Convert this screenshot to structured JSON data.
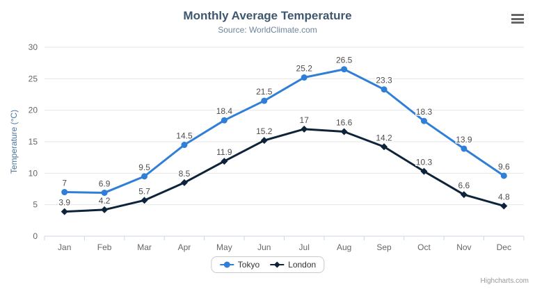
{
  "chart_data": {
    "type": "line",
    "title": "Monthly Average Temperature",
    "subtitle": "Source: WorldClimate.com",
    "categories": [
      "Jan",
      "Feb",
      "Mar",
      "Apr",
      "May",
      "Jun",
      "Jul",
      "Aug",
      "Sep",
      "Oct",
      "Nov",
      "Dec"
    ],
    "series": [
      {
        "name": "Tokyo",
        "color": "#2f7ed8",
        "marker": "circle",
        "values": [
          7,
          6.9,
          9.5,
          14.5,
          18.4,
          21.5,
          25.2,
          26.5,
          23.3,
          18.3,
          13.9,
          9.6
        ]
      },
      {
        "name": "London",
        "color": "#0d233a",
        "marker": "diamond",
        "values": [
          3.9,
          4.2,
          5.7,
          8.5,
          11.9,
          15.2,
          17,
          16.6,
          14.2,
          10.3,
          6.6,
          4.8
        ]
      }
    ],
    "xlabel": "",
    "ylabel": "Temperature (°C)",
    "ylim": [
      0,
      30
    ],
    "ytick_interval": 5,
    "grid": true,
    "legend_position": "bottom-center",
    "data_labels_visible": true
  },
  "colors": {
    "title": "#3e576f",
    "subtitle": "#6d869f",
    "axis_title": "#4d759e",
    "axis_labels": "#666666",
    "grid": "#e6e6e6",
    "axis_line": "#ccd6eb",
    "data_label": "#4d4d4d",
    "legend_text": "#333333",
    "legend_border": "#c9c9c9",
    "credits": "#999999",
    "menu_icon": "#666666"
  },
  "credits": {
    "label": "Highcharts.com"
  }
}
